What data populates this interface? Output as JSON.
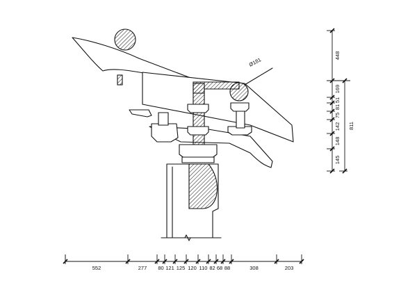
{
  "diameter_label": "Ø181",
  "bottom_dimensions": [
    "552",
    "277",
    "80",
    "121",
    "125",
    "120",
    "110",
    "82",
    "68",
    "88",
    "308",
    "203"
  ],
  "right_dimensions_inner": [
    "448",
    "169",
    "51",
    "81",
    "75",
    "142",
    "148",
    "145"
  ],
  "right_dimension_total": "811"
}
